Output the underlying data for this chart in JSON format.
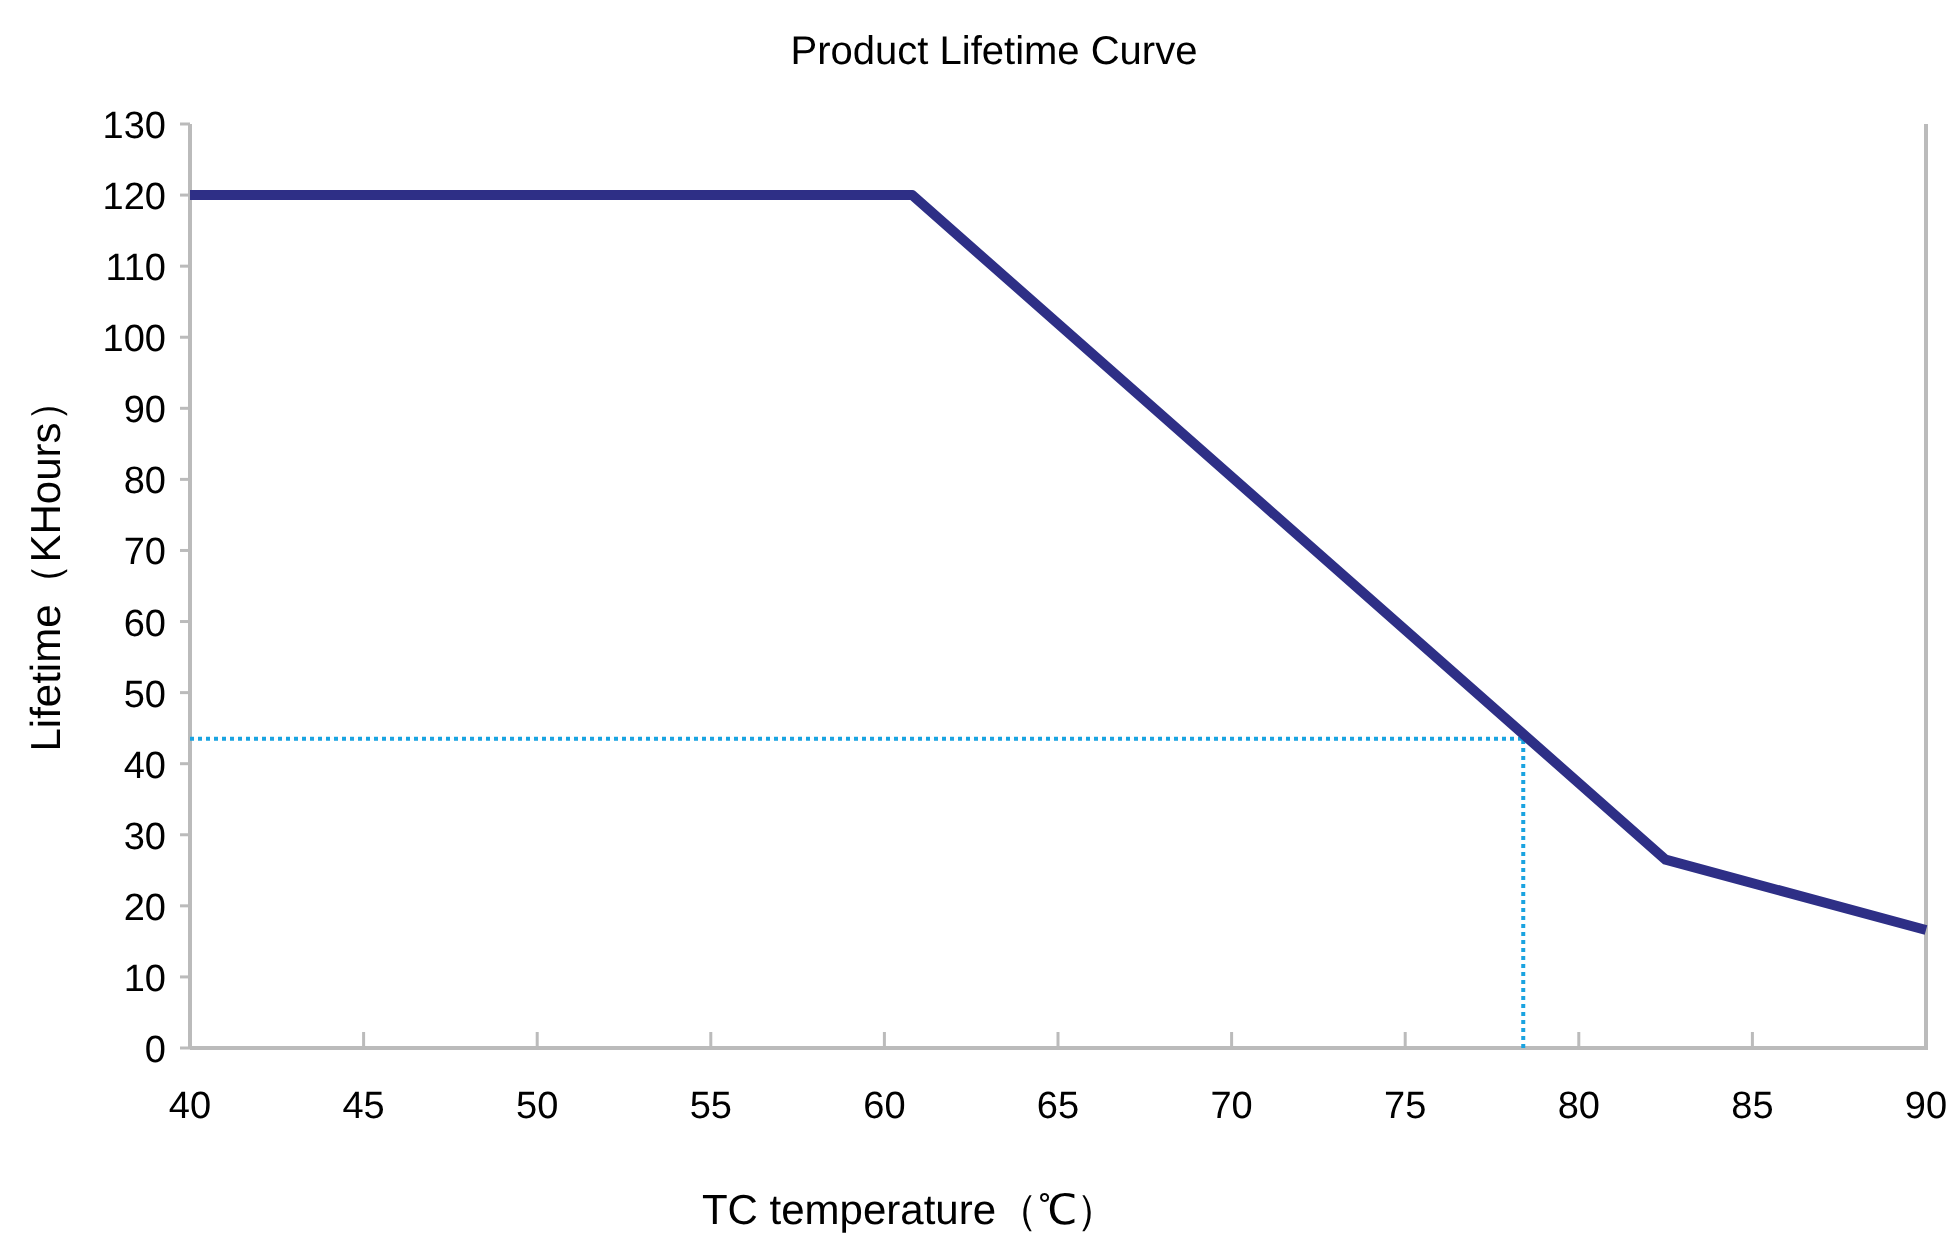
{
  "chart_data": {
    "type": "line",
    "title": "Product Lifetime Curve",
    "xlabel": "TC  temperature（℃）",
    "ylabel": "Lifetime（KHours）",
    "x": [
      40,
      60.8,
      82.5,
      90
    ],
    "series": [
      {
        "color": "#2e2f86",
        "values": [
          120,
          120,
          26.5,
          16.6
        ]
      }
    ],
    "xlim": [
      40,
      90
    ],
    "xticks": [
      40,
      45,
      50,
      55,
      60,
      65,
      70,
      75,
      80,
      85,
      90
    ],
    "ylim": [
      0,
      130
    ],
    "yticks": [
      0,
      10,
      20,
      30,
      40,
      50,
      60,
      70,
      80,
      90,
      100,
      110,
      120,
      130
    ],
    "ref_lines": [
      {
        "axis": "x",
        "value": 78.4,
        "color": "#1aa3e0",
        "line_style": "dotted"
      },
      {
        "axis": "y",
        "value": 43.5,
        "color": "#1aa3e0",
        "line_style": "dotted"
      }
    ],
    "grid": false,
    "marker": "none",
    "line_style": "solid"
  }
}
